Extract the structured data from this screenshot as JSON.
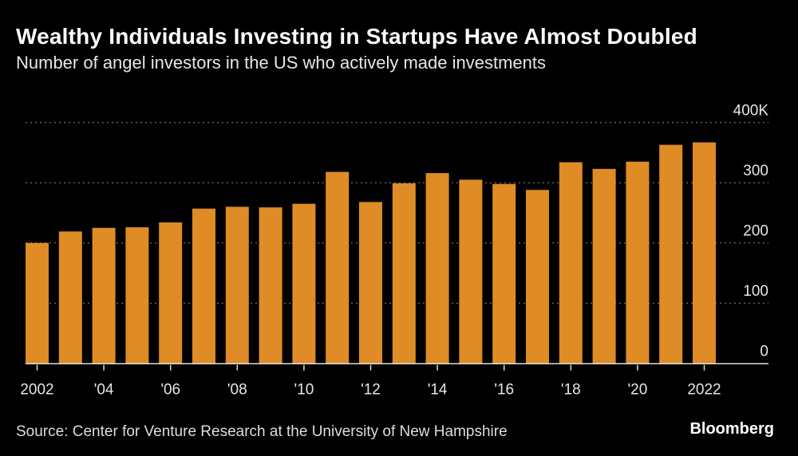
{
  "title": "Wealthy Individuals Investing in Startups Have Almost Doubled",
  "subtitle": "Number of angel investors in the US who actively made investments",
  "source": "Source: Center for Venture Research at the University of New Hampshire",
  "logo": "Bloomberg",
  "chart_data": {
    "type": "bar",
    "title": "Wealthy Individuals Investing in Startups Have Almost Doubled",
    "subtitle": "Number of angel investors in the US who actively made investments",
    "categories": [
      "2002",
      "2003",
      "2004",
      "2005",
      "2006",
      "2007",
      "2008",
      "2009",
      "2010",
      "2011",
      "2012",
      "2013",
      "2014",
      "2015",
      "2016",
      "2017",
      "2018",
      "2019",
      "2020",
      "2021",
      "2022"
    ],
    "values": [
      200,
      219,
      225,
      226,
      234,
      257,
      260,
      259,
      265,
      318,
      268,
      299,
      316,
      305,
      298,
      288,
      334,
      323,
      335,
      363,
      367
    ],
    "x_tick_labels": [
      {
        "category": "2002",
        "label": "2002"
      },
      {
        "category": "2004",
        "label": "'04"
      },
      {
        "category": "2006",
        "label": "'06"
      },
      {
        "category": "2008",
        "label": "'08"
      },
      {
        "category": "2010",
        "label": "'10"
      },
      {
        "category": "2012",
        "label": "'12"
      },
      {
        "category": "2014",
        "label": "'14"
      },
      {
        "category": "2016",
        "label": "'16"
      },
      {
        "category": "2018",
        "label": "'18"
      },
      {
        "category": "2020",
        "label": "'20"
      },
      {
        "category": "2022",
        "label": "2022"
      }
    ],
    "y_ticks": [
      0,
      100,
      200,
      300,
      400
    ],
    "y_tick_labels": [
      "0",
      "100",
      "200",
      "300",
      "400K"
    ],
    "ylim": [
      0,
      400
    ],
    "xlabel": "",
    "ylabel": "",
    "grid": true,
    "y_axis_position": "right",
    "bar_color": "#df8b26"
  }
}
